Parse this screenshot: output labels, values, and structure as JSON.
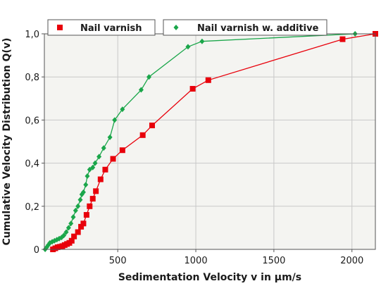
{
  "chart_data": {
    "type": "scatter",
    "title": "",
    "xlabel": "Sedimentation Velocity v in µm/s",
    "ylabel": "Cumulative Velocity Distribution Q(v)",
    "xlim": [
      30,
      2150
    ],
    "ylim": [
      0,
      1.0
    ],
    "xticks": [
      500,
      1000,
      1500,
      2000
    ],
    "xtick_labels": [
      "500",
      "1000",
      "1500",
      "2000"
    ],
    "yticks": [
      0,
      0.2,
      0.4,
      0.6,
      0.8,
      1.0
    ],
    "ytick_labels": [
      "0",
      "0,2",
      "0,4",
      "0,6",
      "0,8",
      "1,0"
    ],
    "grid": true,
    "legend_position": "top",
    "series": [
      {
        "name": "Nail varnish",
        "color": "#e8000b",
        "marker": "square",
        "x": [
          85,
          100,
          115,
          130,
          145,
          160,
          175,
          190,
          205,
          220,
          245,
          265,
          280,
          300,
          320,
          340,
          360,
          390,
          420,
          470,
          530,
          660,
          720,
          980,
          1080,
          1940,
          2150
        ],
        "y": [
          0.0,
          0.005,
          0.01,
          0.012,
          0.015,
          0.02,
          0.025,
          0.03,
          0.04,
          0.06,
          0.08,
          0.105,
          0.12,
          0.16,
          0.2,
          0.235,
          0.27,
          0.325,
          0.37,
          0.42,
          0.46,
          0.53,
          0.575,
          0.745,
          0.785,
          0.975,
          1.0
        ]
      },
      {
        "name": "Nail varnish w. additive",
        "color": "#1aa64a",
        "marker": "diamond",
        "x": [
          35,
          45,
          55,
          65,
          80,
          95,
          110,
          125,
          140,
          155,
          170,
          185,
          200,
          215,
          230,
          245,
          260,
          270,
          280,
          295,
          305,
          320,
          340,
          355,
          380,
          410,
          450,
          480,
          530,
          650,
          700,
          950,
          1040,
          2020
        ],
        "y": [
          0.0,
          0.01,
          0.02,
          0.03,
          0.035,
          0.04,
          0.045,
          0.05,
          0.055,
          0.065,
          0.08,
          0.1,
          0.12,
          0.15,
          0.18,
          0.2,
          0.23,
          0.255,
          0.265,
          0.3,
          0.34,
          0.37,
          0.38,
          0.4,
          0.43,
          0.47,
          0.52,
          0.6,
          0.65,
          0.74,
          0.8,
          0.94,
          0.965,
          1.0
        ]
      }
    ]
  }
}
